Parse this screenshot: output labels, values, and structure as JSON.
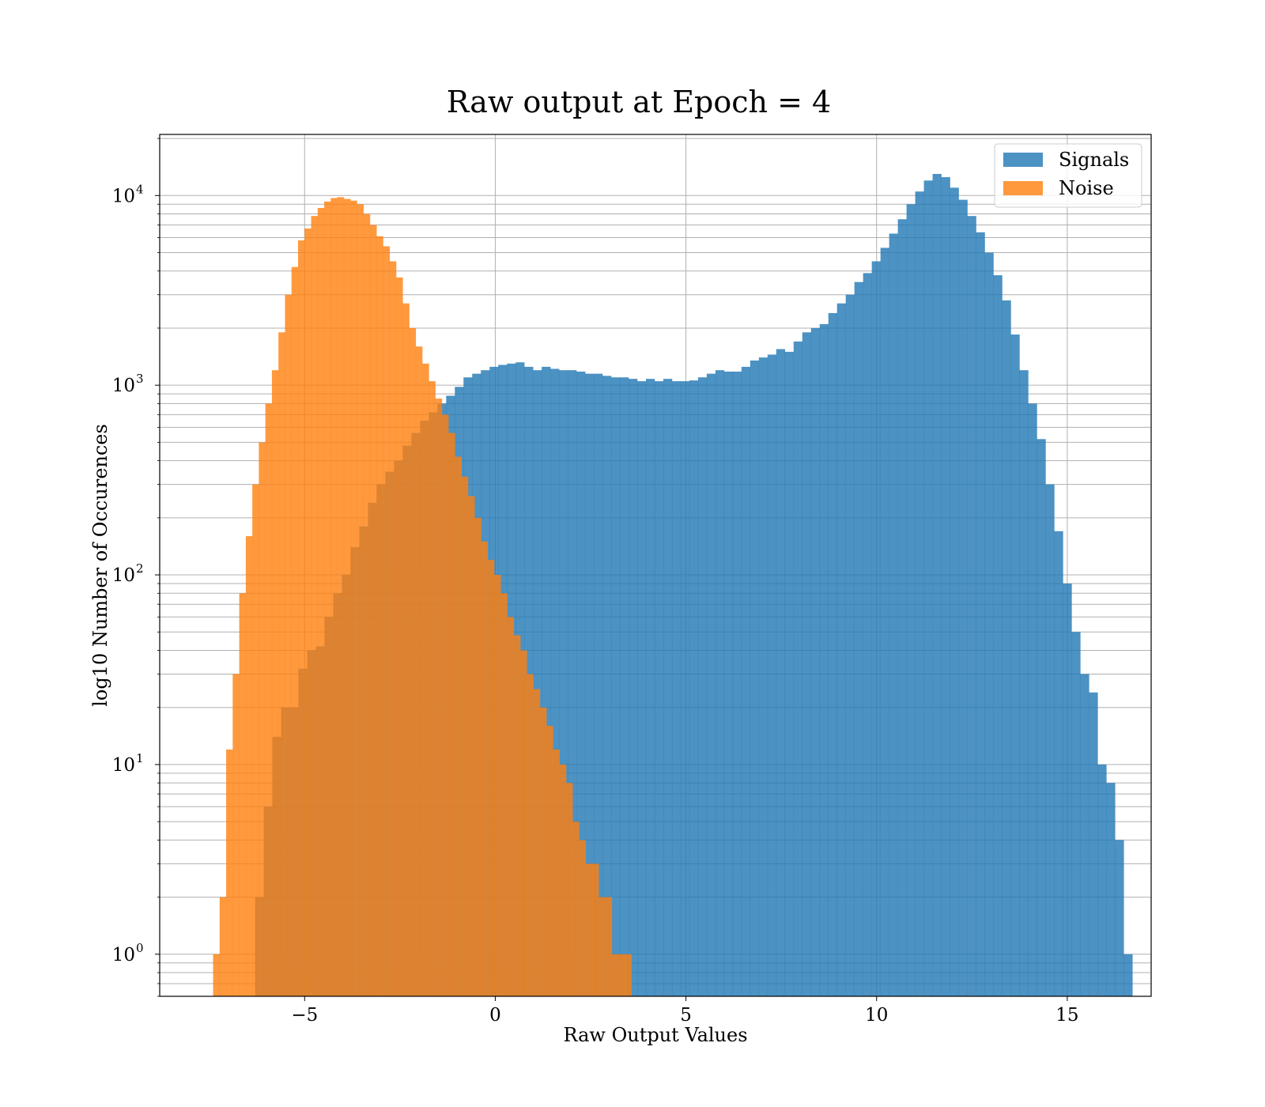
{
  "chart_data": {
    "type": "bar",
    "title": "Raw output at Epoch = 4",
    "xlabel": "Raw Output Values",
    "ylabel": "log10 Number of Occurences",
    "xlim": [
      -8.8,
      17.2
    ],
    "ylim": [
      0.6,
      21000
    ],
    "y_scale": "log",
    "x_ticks": [
      -5,
      0,
      5,
      10,
      15
    ],
    "x_tick_labels": [
      "−5",
      "0",
      "5",
      "10",
      "15"
    ],
    "y_ticks": [
      1,
      10,
      100,
      1000,
      10000
    ],
    "y_tick_labels": [
      "10",
      "10",
      "10",
      "10",
      "10"
    ],
    "y_tick_exponents": [
      "0",
      "1",
      "2",
      "3",
      "4"
    ],
    "grid": true,
    "legend": "top-right",
    "series": [
      {
        "name": "Signals",
        "color": "#1f77b4",
        "bin_start": -6.3,
        "bin_width": 0.2278,
        "values": [
          2,
          6,
          14,
          20,
          20,
          32,
          40,
          42,
          60,
          80,
          100,
          140,
          180,
          240,
          300,
          350,
          400,
          480,
          560,
          650,
          720,
          800,
          880,
          980,
          1100,
          1150,
          1200,
          1250,
          1280,
          1300,
          1320,
          1250,
          1200,
          1250,
          1220,
          1200,
          1200,
          1180,
          1150,
          1150,
          1120,
          1100,
          1100,
          1080,
          1050,
          1080,
          1050,
          1080,
          1050,
          1050,
          1060,
          1100,
          1150,
          1200,
          1180,
          1180,
          1250,
          1350,
          1400,
          1450,
          1550,
          1500,
          1700,
          1900,
          2000,
          2100,
          2400,
          2700,
          3000,
          3500,
          3900,
          4500,
          5300,
          6300,
          7500,
          9000,
          10500,
          12000,
          13000,
          12500,
          11000,
          9500,
          7800,
          6400,
          5000,
          3800,
          2800,
          1850,
          1200,
          800,
          520,
          300,
          170,
          90,
          50,
          30,
          24,
          10,
          8,
          4,
          1
        ]
      },
      {
        "name": "Noise",
        "color": "#ff7f0e",
        "bin_start": -7.4,
        "bin_width": 0.1714,
        "values": [
          1,
          2,
          12,
          30,
          80,
          160,
          300,
          500,
          800,
          1200,
          1900,
          3000,
          4200,
          5800,
          6700,
          7800,
          8600,
          9300,
          9700,
          9800,
          9600,
          9400,
          9000,
          8000,
          7000,
          6100,
          5400,
          4500,
          3700,
          2700,
          2000,
          1600,
          1300,
          1050,
          850,
          700,
          560,
          420,
          330,
          260,
          200,
          150,
          120,
          100,
          80,
          60,
          48,
          40,
          30,
          25,
          20,
          16,
          12,
          10,
          8,
          5,
          4,
          3,
          3,
          2,
          2,
          1,
          1,
          1
        ]
      }
    ]
  }
}
